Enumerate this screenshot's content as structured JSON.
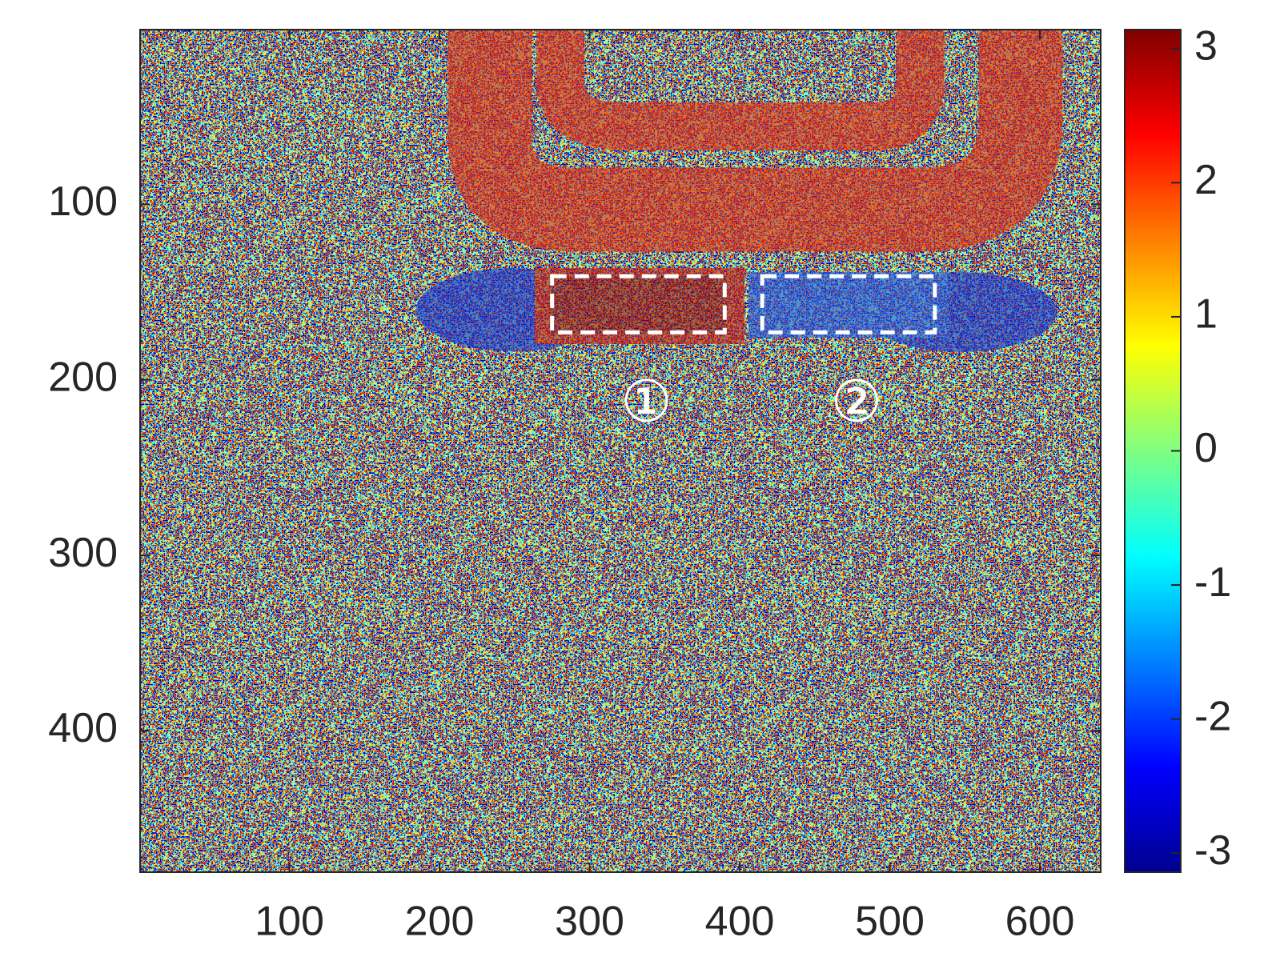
{
  "chart_data": {
    "type": "image",
    "colormap": "jet",
    "xlim": [
      0.5,
      640.5
    ],
    "ylim": [
      0.5,
      480.5
    ],
    "y_reversed": true,
    "xticks": [
      100,
      200,
      300,
      400,
      500,
      600
    ],
    "yticks": [
      100,
      200,
      300,
      400
    ],
    "clim": [
      -3.1416,
      3.1416
    ],
    "cticks": [
      -3,
      -2,
      -1,
      0,
      1,
      2,
      3
    ],
    "regions": [
      {
        "label": "①",
        "x": [
          275,
          390
        ],
        "y": [
          141,
          173
        ],
        "color": "#ffffff"
      },
      {
        "label": "②",
        "x": [
          415,
          530
        ],
        "y": [
          141,
          173
        ],
        "color": "#ffffff"
      }
    ]
  }
}
